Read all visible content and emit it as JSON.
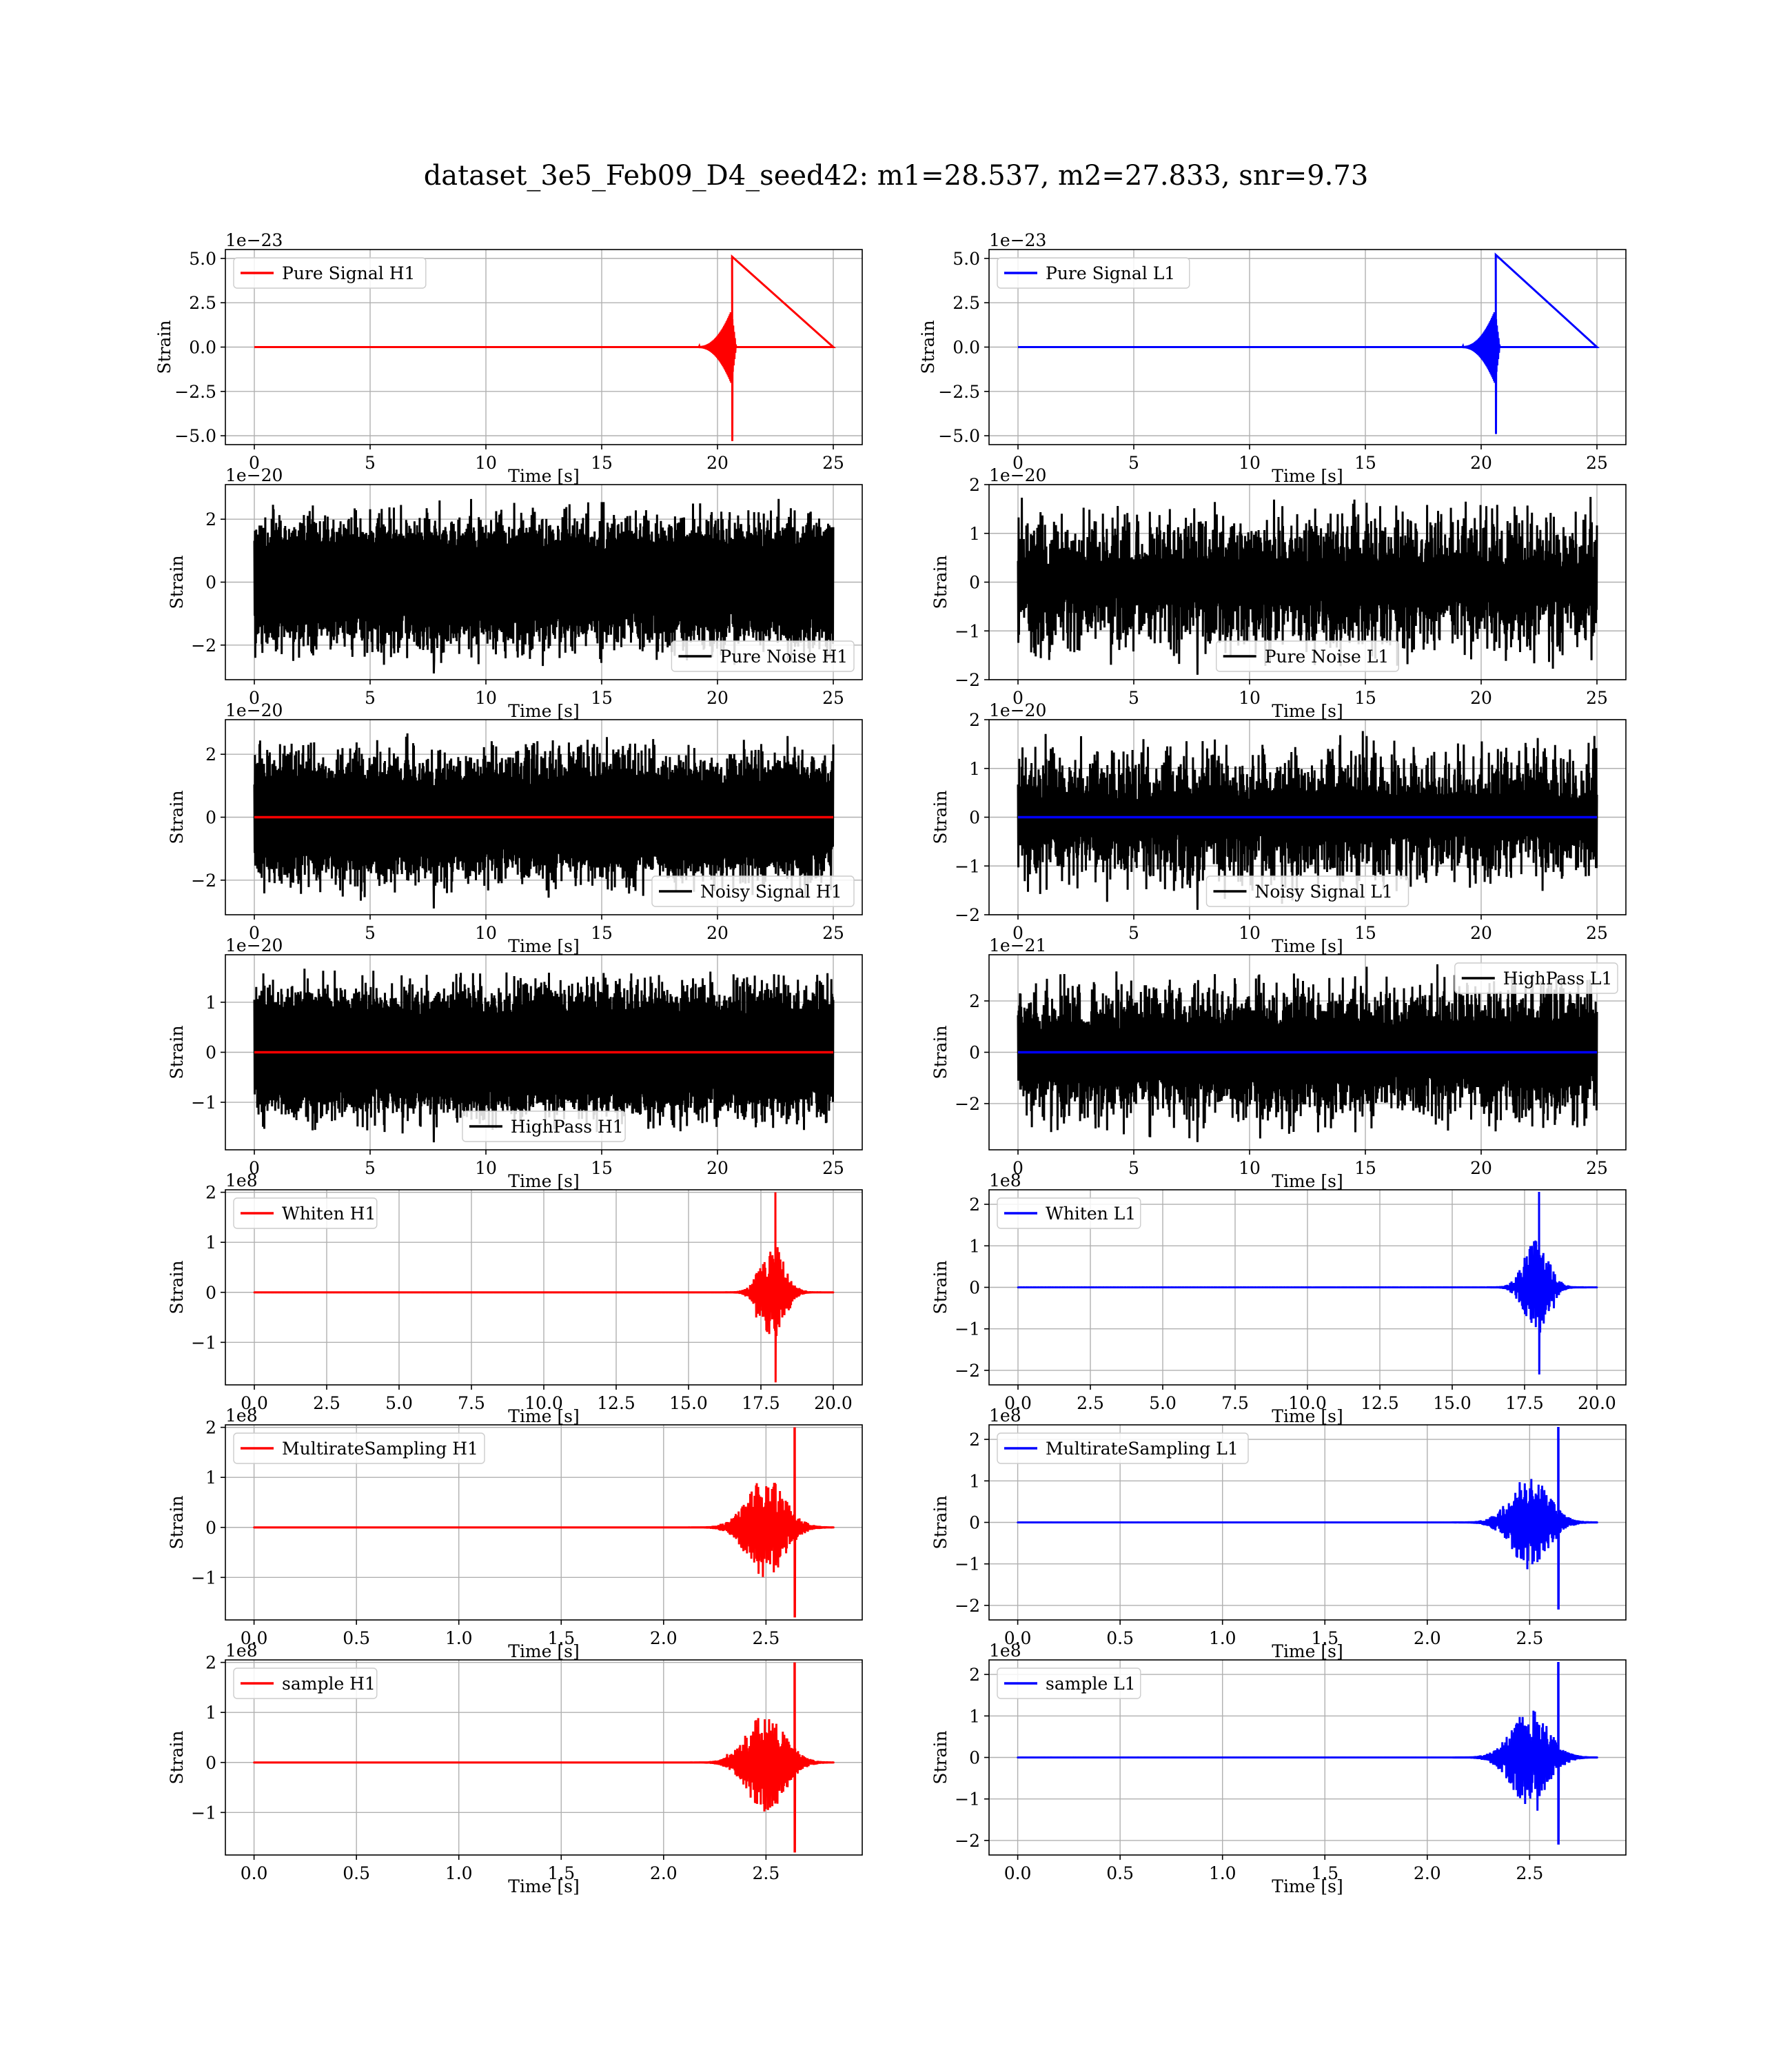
{
  "figure": {
    "title": "dataset_3e5_Feb09_D4_seed42: m1=28.537, m2=27.833, snr=9.73"
  },
  "colors": {
    "H1": "#ff0000",
    "L1": "#0000ff",
    "noise": "#000000",
    "grid": "#b0b0b0"
  },
  "chart_data": [
    {
      "type": "line",
      "detector": "H1",
      "row": 0,
      "col": 0,
      "xlabel": "Time [s]",
      "ylabel": "Strain",
      "offset_text": "1e−23",
      "xlim": [
        -1.25,
        26.25
      ],
      "ylim": [
        -5.5,
        5.5
      ],
      "xticks": [
        0,
        5,
        10,
        15,
        20,
        25
      ],
      "xtick_labels": [
        "0",
        "5",
        "10",
        "15",
        "20",
        "25"
      ],
      "yticks": [
        -5,
        -2.5,
        0,
        2.5,
        5
      ],
      "ytick_labels": [
        "−5.0",
        "−2.5",
        "0.0",
        "2.5",
        "5.0"
      ],
      "grid": true,
      "legend": {
        "labels": [
          "Pure Signal H1"
        ],
        "loc": "upper left"
      },
      "series": [
        {
          "name": "Pure Signal H1",
          "color": "#ff0000",
          "kind": "chirp",
          "x_range": [
            0,
            25
          ],
          "baseline": 0,
          "onset": 19.2,
          "merger": 20.6,
          "ringdown_end": 20.8,
          "preak_amp": 2.0,
          "peak_amp": 5.1,
          "peak_min": -5.3
        }
      ]
    },
    {
      "type": "line",
      "detector": "L1",
      "row": 0,
      "col": 1,
      "xlabel": "Time [s]",
      "ylabel": "Strain",
      "offset_text": "1e−23",
      "xlim": [
        -1.25,
        26.25
      ],
      "ylim": [
        -5.5,
        5.5
      ],
      "xticks": [
        0,
        5,
        10,
        15,
        20,
        25
      ],
      "xtick_labels": [
        "0",
        "5",
        "10",
        "15",
        "20",
        "25"
      ],
      "yticks": [
        -5,
        -2.5,
        0,
        2.5,
        5
      ],
      "ytick_labels": [
        "−5.0",
        "−2.5",
        "0.0",
        "2.5",
        "5.0"
      ],
      "grid": true,
      "legend": {
        "labels": [
          "Pure Signal L1"
        ],
        "loc": "upper left"
      },
      "series": [
        {
          "name": "Pure Signal L1",
          "color": "#0000ff",
          "kind": "chirp",
          "x_range": [
            0,
            25
          ],
          "baseline": 0,
          "onset": 19.2,
          "merger": 20.6,
          "ringdown_end": 20.8,
          "preak_amp": 2.0,
          "peak_amp": 5.2,
          "peak_min": -4.9
        }
      ]
    },
    {
      "type": "line",
      "detector": "H1",
      "row": 1,
      "col": 0,
      "xlabel": "Time [s]",
      "ylabel": "Strain",
      "offset_text": "1e−20",
      "xlim": [
        -1.25,
        26.25
      ],
      "ylim": [
        -3.1,
        3.1
      ],
      "xticks": [
        0,
        5,
        10,
        15,
        20,
        25
      ],
      "xtick_labels": [
        "0",
        "5",
        "10",
        "15",
        "20",
        "25"
      ],
      "yticks": [
        -2,
        0,
        2
      ],
      "ytick_labels": [
        "−2",
        "0",
        "2"
      ],
      "grid": true,
      "legend": {
        "labels": [
          "Pure Noise H1"
        ],
        "loc": "lower right"
      },
      "series": [
        {
          "name": "Pure Noise H1",
          "color": "#000000",
          "kind": "noise",
          "x_range": [
            0,
            25
          ],
          "amp": 2.7,
          "floor": 1.6,
          "peak_min": -2.9
        }
      ]
    },
    {
      "type": "line",
      "detector": "L1",
      "row": 1,
      "col": 1,
      "xlabel": "Time [s]",
      "ylabel": "Strain",
      "offset_text": "1e−20",
      "xlim": [
        -1.25,
        26.25
      ],
      "ylim": [
        -2,
        2
      ],
      "xticks": [
        0,
        5,
        10,
        15,
        20,
        25
      ],
      "xtick_labels": [
        "0",
        "5",
        "10",
        "15",
        "20",
        "25"
      ],
      "yticks": [
        -2,
        -1,
        0,
        1,
        2
      ],
      "ytick_labels": [
        "−2",
        "−1",
        "0",
        "1",
        "2"
      ],
      "grid": true,
      "legend": {
        "labels": [
          "Pure Noise L1"
        ],
        "loc": "lower center"
      },
      "series": [
        {
          "name": "Pure Noise L1",
          "color": "#000000",
          "kind": "noise",
          "x_range": [
            0,
            25
          ],
          "amp": 1.8,
          "floor": 0.5,
          "peak_min": -1.9
        }
      ]
    },
    {
      "type": "line",
      "detector": "H1",
      "row": 2,
      "col": 0,
      "xlabel": "Time [s]",
      "ylabel": "Strain",
      "offset_text": "1e−20",
      "xlim": [
        -1.25,
        26.25
      ],
      "ylim": [
        -3.1,
        3.1
      ],
      "xticks": [
        0,
        5,
        10,
        15,
        20,
        25
      ],
      "xtick_labels": [
        "0",
        "5",
        "10",
        "15",
        "20",
        "25"
      ],
      "yticks": [
        -2,
        0,
        2
      ],
      "ytick_labels": [
        "−2",
        "0",
        "2"
      ],
      "grid": true,
      "legend": {
        "labels": [
          "Noisy Signal H1"
        ],
        "loc": "lower right"
      },
      "series": [
        {
          "name": "Noisy Signal H1",
          "color": "#000000",
          "kind": "noise",
          "x_range": [
            0,
            25
          ],
          "amp": 2.7,
          "floor": 1.6,
          "peak_min": -2.9
        },
        {
          "name": "",
          "color": "#ff0000",
          "kind": "flat",
          "x_range": [
            0,
            25
          ],
          "baseline": 0
        }
      ]
    },
    {
      "type": "line",
      "detector": "L1",
      "row": 2,
      "col": 1,
      "xlabel": "Time [s]",
      "ylabel": "Strain",
      "offset_text": "1e−20",
      "xlim": [
        -1.25,
        26.25
      ],
      "ylim": [
        -2,
        2
      ],
      "xticks": [
        0,
        5,
        10,
        15,
        20,
        25
      ],
      "xtick_labels": [
        "0",
        "5",
        "10",
        "15",
        "20",
        "25"
      ],
      "yticks": [
        -2,
        -1,
        0,
        1,
        2
      ],
      "ytick_labels": [
        "−2",
        "−1",
        "0",
        "1",
        "2"
      ],
      "grid": true,
      "legend": {
        "labels": [
          "Noisy Signal L1"
        ],
        "loc": "lower center"
      },
      "series": [
        {
          "name": "Noisy Signal L1",
          "color": "#000000",
          "kind": "noise",
          "x_range": [
            0,
            25
          ],
          "amp": 1.8,
          "floor": 0.5,
          "peak_min": -1.9
        },
        {
          "name": "",
          "color": "#0000ff",
          "kind": "flat",
          "x_range": [
            0,
            25
          ],
          "baseline": 0
        }
      ]
    },
    {
      "type": "line",
      "detector": "H1",
      "row": 3,
      "col": 0,
      "xlabel": "Time [s]",
      "ylabel": "Strain",
      "offset_text": "1e−20",
      "xlim": [
        -1.25,
        26.25
      ],
      "ylim": [
        -1.95,
        1.95
      ],
      "xticks": [
        0,
        5,
        10,
        15,
        20,
        25
      ],
      "xtick_labels": [
        "0",
        "5",
        "10",
        "15",
        "20",
        "25"
      ],
      "yticks": [
        -1,
        0,
        1
      ],
      "ytick_labels": [
        "−1",
        "0",
        "1"
      ],
      "grid": true,
      "legend": {
        "labels": [
          "HighPass H1"
        ],
        "loc": "lower center"
      },
      "series": [
        {
          "name": "HighPass H1",
          "color": "#000000",
          "kind": "noise",
          "x_range": [
            0,
            25
          ],
          "amp": 1.7,
          "floor": 1.1,
          "peak_min": -1.8
        },
        {
          "name": "",
          "color": "#ff0000",
          "kind": "flat",
          "x_range": [
            0,
            25
          ],
          "baseline": 0
        }
      ]
    },
    {
      "type": "line",
      "detector": "L1",
      "row": 3,
      "col": 1,
      "xlabel": "Time [s]",
      "ylabel": "Strain",
      "offset_text": "1e−21",
      "xlim": [
        -1.25,
        26.25
      ],
      "ylim": [
        -3.8,
        3.8
      ],
      "xticks": [
        0,
        5,
        10,
        15,
        20,
        25
      ],
      "xtick_labels": [
        "0",
        "5",
        "10",
        "15",
        "20",
        "25"
      ],
      "yticks": [
        -2,
        0,
        2
      ],
      "ytick_labels": [
        "−2",
        "0",
        "2"
      ],
      "grid": true,
      "legend": {
        "labels": [
          "HighPass L1"
        ],
        "loc": "upper right"
      },
      "series": [
        {
          "name": "HighPass L1",
          "color": "#000000",
          "kind": "noise",
          "x_range": [
            0,
            25
          ],
          "amp": 3.5,
          "floor": 1.4,
          "peak_min": -3.5
        },
        {
          "name": "",
          "color": "#0000ff",
          "kind": "flat",
          "x_range": [
            0,
            25
          ],
          "baseline": 0
        }
      ]
    },
    {
      "type": "line",
      "detector": "H1",
      "row": 4,
      "col": 0,
      "xlabel": "Time [s]",
      "ylabel": "Strain",
      "offset_text": "1e8",
      "xlim": [
        -1.0,
        21.0
      ],
      "ylim": [
        -1.85,
        2.05
      ],
      "xticks": [
        0,
        2.5,
        5,
        7.5,
        10,
        12.5,
        15,
        17.5,
        20
      ],
      "xtick_labels": [
        "0.0",
        "2.5",
        "5.0",
        "7.5",
        "10.0",
        "12.5",
        "15.0",
        "17.5",
        "20.0"
      ],
      "yticks": [
        -1,
        0,
        1,
        2
      ],
      "ytick_labels": [
        "−1",
        "0",
        "1",
        "2"
      ],
      "grid": true,
      "legend": {
        "labels": [
          "Whiten H1"
        ],
        "loc": "upper left"
      },
      "series": [
        {
          "name": "Whiten H1",
          "color": "#ff0000",
          "kind": "burst",
          "x_range": [
            0,
            20
          ],
          "center": 17.9,
          "width": 0.9,
          "spike_x": 18.0,
          "amp": 2.0,
          "peak_min": -1.8
        }
      ]
    },
    {
      "type": "line",
      "detector": "L1",
      "row": 4,
      "col": 1,
      "xlabel": "Time [s]",
      "ylabel": "Strain",
      "offset_text": "1e8",
      "xlim": [
        -1.0,
        21.0
      ],
      "ylim": [
        -2.35,
        2.35
      ],
      "xticks": [
        0,
        2.5,
        5,
        7.5,
        10,
        12.5,
        15,
        17.5,
        20
      ],
      "xtick_labels": [
        "0.0",
        "2.5",
        "5.0",
        "7.5",
        "10.0",
        "12.5",
        "15.0",
        "17.5",
        "20.0"
      ],
      "yticks": [
        -2,
        -1,
        0,
        1,
        2
      ],
      "ytick_labels": [
        "−2",
        "−1",
        "0",
        "1",
        "2"
      ],
      "grid": true,
      "legend": {
        "labels": [
          "Whiten L1"
        ],
        "loc": "upper left"
      },
      "series": [
        {
          "name": "Whiten L1",
          "color": "#0000ff",
          "kind": "burst",
          "x_range": [
            0,
            20
          ],
          "center": 17.9,
          "width": 0.9,
          "spike_x": 18.0,
          "amp": 2.3,
          "peak_min": -2.1
        }
      ]
    },
    {
      "type": "line",
      "detector": "H1",
      "row": 5,
      "col": 0,
      "xlabel": "Time [s]",
      "ylabel": "Strain",
      "offset_text": "1e8",
      "xlim": [
        -0.14,
        2.97
      ],
      "ylim": [
        -1.85,
        2.05
      ],
      "xticks": [
        0,
        0.5,
        1.0,
        1.5,
        2.0,
        2.5
      ],
      "xtick_labels": [
        "0.0",
        "0.5",
        "1.0",
        "1.5",
        "2.0",
        "2.5"
      ],
      "yticks": [
        -1,
        0,
        1,
        2
      ],
      "ytick_labels": [
        "−1",
        "0",
        "1",
        "2"
      ],
      "grid": true,
      "legend": {
        "labels": [
          "MultirateSampling H1"
        ],
        "loc": "upper left"
      },
      "series": [
        {
          "name": "MultirateSampling H1",
          "color": "#ff0000",
          "kind": "burst",
          "x_range": [
            0,
            2.83
          ],
          "center": 2.5,
          "width": 0.2,
          "spike_x": 2.64,
          "amp": 2.0,
          "peak_min": -1.8
        }
      ]
    },
    {
      "type": "line",
      "detector": "L1",
      "row": 5,
      "col": 1,
      "xlabel": "Time [s]",
      "ylabel": "Strain",
      "offset_text": "1e8",
      "xlim": [
        -0.14,
        2.97
      ],
      "ylim": [
        -2.35,
        2.35
      ],
      "xticks": [
        0,
        0.5,
        1.0,
        1.5,
        2.0,
        2.5
      ],
      "xtick_labels": [
        "0.0",
        "0.5",
        "1.0",
        "1.5",
        "2.0",
        "2.5"
      ],
      "yticks": [
        -2,
        -1,
        0,
        1,
        2
      ],
      "ytick_labels": [
        "−2",
        "−1",
        "0",
        "1",
        "2"
      ],
      "grid": true,
      "legend": {
        "labels": [
          "MultirateSampling L1"
        ],
        "loc": "upper left"
      },
      "series": [
        {
          "name": "MultirateSampling L1",
          "color": "#0000ff",
          "kind": "burst",
          "x_range": [
            0,
            2.83
          ],
          "center": 2.5,
          "width": 0.2,
          "spike_x": 2.64,
          "amp": 2.3,
          "peak_min": -2.1
        }
      ]
    },
    {
      "type": "line",
      "detector": "H1",
      "row": 6,
      "col": 0,
      "xlabel": "Time [s]",
      "ylabel": "Strain",
      "offset_text": "1e8",
      "xlim": [
        -0.14,
        2.97
      ],
      "ylim": [
        -1.85,
        2.05
      ],
      "xticks": [
        0,
        0.5,
        1.0,
        1.5,
        2.0,
        2.5
      ],
      "xtick_labels": [
        "0.0",
        "0.5",
        "1.0",
        "1.5",
        "2.0",
        "2.5"
      ],
      "yticks": [
        -1,
        0,
        1,
        2
      ],
      "ytick_labels": [
        "−1",
        "0",
        "1",
        "2"
      ],
      "grid": true,
      "legend": {
        "labels": [
          "sample H1"
        ],
        "loc": "upper left"
      },
      "series": [
        {
          "name": "sample H1",
          "color": "#ff0000",
          "kind": "burst",
          "x_range": [
            0,
            2.83
          ],
          "center": 2.5,
          "width": 0.2,
          "spike_x": 2.64,
          "amp": 2.0,
          "peak_min": -1.8
        }
      ]
    },
    {
      "type": "line",
      "detector": "L1",
      "row": 6,
      "col": 1,
      "xlabel": "Time [s]",
      "ylabel": "Strain",
      "offset_text": "1e8",
      "xlim": [
        -0.14,
        2.97
      ],
      "ylim": [
        -2.35,
        2.35
      ],
      "xticks": [
        0,
        0.5,
        1.0,
        1.5,
        2.0,
        2.5
      ],
      "xtick_labels": [
        "0.0",
        "0.5",
        "1.0",
        "1.5",
        "2.0",
        "2.5"
      ],
      "yticks": [
        -2,
        -1,
        0,
        1,
        2
      ],
      "ytick_labels": [
        "−2",
        "−1",
        "0",
        "1",
        "2"
      ],
      "grid": true,
      "legend": {
        "labels": [
          "sample L1"
        ],
        "loc": "upper left"
      },
      "series": [
        {
          "name": "sample L1",
          "color": "#0000ff",
          "kind": "burst",
          "x_range": [
            0,
            2.83
          ],
          "center": 2.5,
          "width": 0.2,
          "spike_x": 2.64,
          "amp": 2.3,
          "peak_min": -2.1
        }
      ]
    }
  ]
}
